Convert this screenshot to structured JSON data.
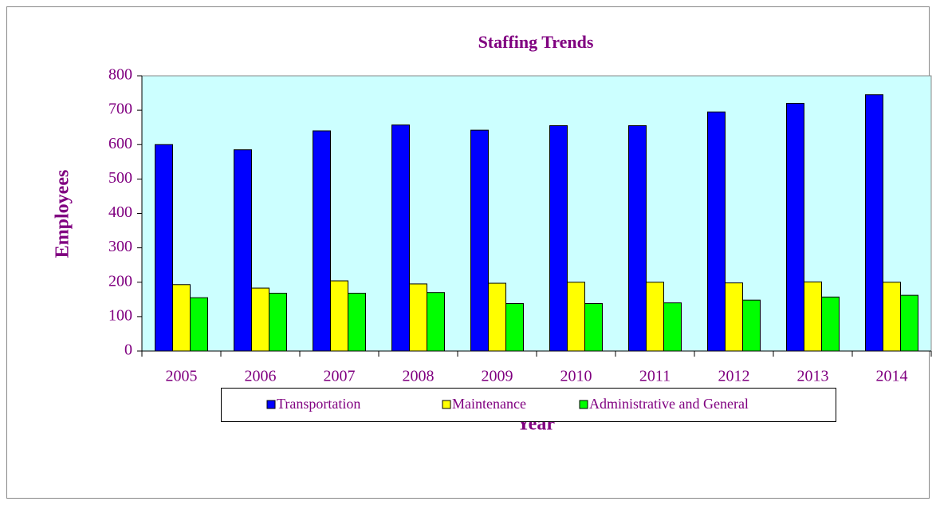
{
  "chart_data": {
    "type": "bar",
    "title": "Staffing Trends",
    "x_label": "Year",
    "y_label": "Employees",
    "categories": [
      "2005",
      "2006",
      "2007",
      "2008",
      "2009",
      "2010",
      "2011",
      "2012",
      "2013",
      "2014"
    ],
    "series": [
      {
        "name": "Transportation",
        "color": "#0000ff",
        "values": [
          600,
          585,
          640,
          657,
          642,
          655,
          655,
          695,
          720,
          745
        ]
      },
      {
        "name": "Maintenance",
        "color": "#ffff00",
        "values": [
          193,
          183,
          204,
          195,
          197,
          200,
          200,
          198,
          201,
          200
        ]
      },
      {
        "name": "Administrative and General",
        "color": "#00ff00",
        "values": [
          155,
          168,
          168,
          170,
          138,
          138,
          140,
          148,
          157,
          162
        ]
      }
    ],
    "ylim": [
      0,
      800
    ],
    "yticks": [
      0,
      100,
      200,
      300,
      400,
      500,
      600,
      700,
      800
    ],
    "legend": "bottom"
  }
}
